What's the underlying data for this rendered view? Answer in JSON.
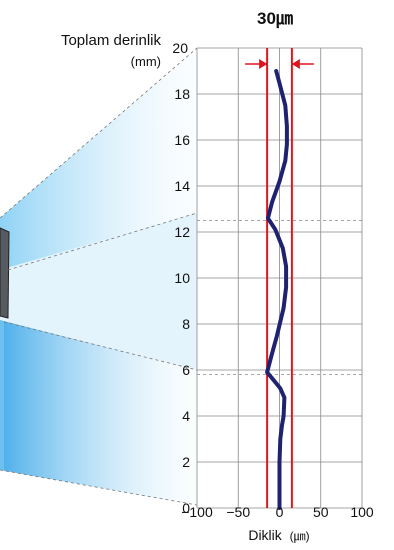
{
  "chart_data": {
    "type": "line",
    "title": "30㎛",
    "ylabel_main": "Toplam derinlik",
    "ylabel_unit": "(mm)",
    "xlabel_main": "Diklik",
    "xlabel_unit": "(㎛)",
    "xlim": [
      -100,
      100
    ],
    "ylim": [
      0,
      20
    ],
    "x_ticks": [
      -100,
      -50,
      0,
      50,
      100
    ],
    "x_tick_labels": [
      "−100",
      "−50",
      "0",
      "50",
      "100"
    ],
    "y_ticks": [
      0,
      2,
      4,
      6,
      8,
      10,
      12,
      14,
      16,
      18,
      20
    ],
    "y_tick_labels": [
      "0",
      "2",
      "4",
      "6",
      "8",
      "10",
      "12",
      "14",
      "16",
      "18",
      "20"
    ],
    "grid": true,
    "limit_lines": [
      -15,
      15
    ],
    "tolerance_band": 30,
    "section_levels": [
      12.5,
      5.8
    ],
    "series": [
      {
        "color": "#1f2270",
        "x": [
          0,
          0,
          0,
          1,
          3,
          5,
          6,
          1,
          -8,
          -15,
          -10,
          -3,
          5,
          8,
          8,
          4,
          -5,
          -14,
          -9,
          0,
          7,
          9,
          9,
          7,
          2,
          -1,
          -4
        ],
        "y": [
          0,
          1,
          2,
          3,
          3.6,
          4,
          4.8,
          5.2,
          5.6,
          5.9,
          6.6,
          7.5,
          8.7,
          9.6,
          10.5,
          11.3,
          12.1,
          12.6,
          13.3,
          14.2,
          15.1,
          15.8,
          16.6,
          17.5,
          18.2,
          18.6,
          19.0
        ]
      }
    ]
  }
}
